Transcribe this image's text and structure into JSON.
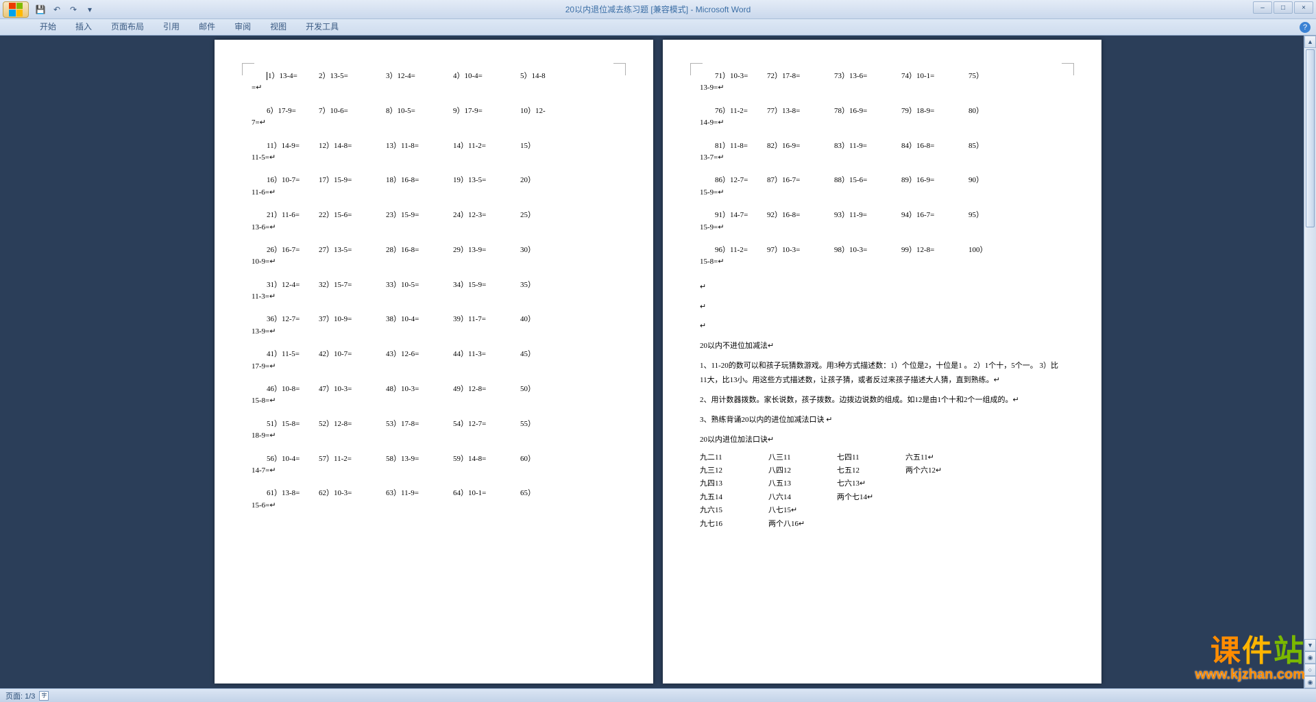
{
  "window": {
    "title_doc": "20以内退位减去练习题 [兼容模式]",
    "title_app": "Microsoft Word",
    "min": "–",
    "max": "□",
    "close": "×"
  },
  "ribbon": {
    "tabs": [
      "开始",
      "插入",
      "页面布局",
      "引用",
      "邮件",
      "审阅",
      "视图",
      "开发工具"
    ],
    "help": "?"
  },
  "page1": {
    "rows": [
      {
        "cells": [
          "1）13-4=",
          "2）13-5=",
          "3）12-4=",
          "4）10-4=",
          "5）14-8"
        ],
        "cont": "=↵"
      },
      {
        "cells": [
          "6）17-9=",
          "7）10-6=",
          "8）10-5=",
          "9）17-9=",
          "10）12-"
        ],
        "cont": "7=↵"
      },
      {
        "cells": [
          "11）14-9=",
          "12）14-8=",
          "13）11-8=",
          "14）11-2=",
          "15）"
        ],
        "cont": "11-5=↵"
      },
      {
        "cells": [
          "16）10-7=",
          "17）15-9=",
          "18）16-8=",
          "19）13-5=",
          "20）"
        ],
        "cont": "11-6=↵"
      },
      {
        "cells": [
          "21）11-6=",
          "22）15-6=",
          "23）15-9=",
          "24）12-3=",
          "25）"
        ],
        "cont": "13-6=↵"
      },
      {
        "cells": [
          "26）16-7=",
          "27）13-5=",
          "28）16-8=",
          "29）13-9=",
          "30）"
        ],
        "cont": "10-9=↵"
      },
      {
        "cells": [
          "31）12-4=",
          "32）15-7=",
          "33）10-5=",
          "34）15-9=",
          "35）"
        ],
        "cont": "11-3=↵"
      },
      {
        "cells": [
          "36）12-7=",
          "37）10-9=",
          "38）10-4=",
          "39）11-7=",
          "40）"
        ],
        "cont": "13-9=↵"
      },
      {
        "cells": [
          "41）11-5=",
          "42）10-7=",
          "43）12-6=",
          "44）11-3=",
          "45）"
        ],
        "cont": "17-9=↵"
      },
      {
        "cells": [
          "46）10-8=",
          "47）10-3=",
          "48）10-3=",
          "49）12-8=",
          "50）"
        ],
        "cont": "15-8=↵"
      },
      {
        "cells": [
          "51）15-8=",
          "52）12-8=",
          "53）17-8=",
          "54）12-7=",
          "55）"
        ],
        "cont": "18-9=↵"
      },
      {
        "cells": [
          "56）10-4=",
          "57）11-2=",
          "58）13-9=",
          "59）14-8=",
          "60）"
        ],
        "cont": "14-7=↵"
      },
      {
        "cells": [
          "61）13-8=",
          "62）10-3=",
          "63）11-9=",
          "64）10-1=",
          "65）"
        ],
        "cont": "15-6=↵"
      }
    ]
  },
  "page2": {
    "rows": [
      {
        "cells": [
          "71）10-3=",
          "72）17-8=",
          "73）13-6=",
          "74）10-1=",
          "75）"
        ],
        "cont": "13-9=↵"
      },
      {
        "cells": [
          "76）11-2=",
          "77）13-8=",
          "78）16-9=",
          "79）18-9=",
          "80）"
        ],
        "cont": "14-9=↵"
      },
      {
        "cells": [
          "81）11-8=",
          "82）16-9=",
          "83）11-9=",
          "84）16-8=",
          "85）"
        ],
        "cont": "13-7=↵"
      },
      {
        "cells": [
          "86）12-7=",
          "87）16-7=",
          "88）15-6=",
          "89）16-9=",
          "90）"
        ],
        "cont": "15-9=↵"
      },
      {
        "cells": [
          "91）14-7=",
          "92）16-8=",
          "93）11-9=",
          "94）16-7=",
          "95）"
        ],
        "cont": "15-9=↵"
      },
      {
        "cells": [
          "96）11-2=",
          "97）10-3=",
          "98）10-3=",
          "99）12-8=",
          "100）"
        ],
        "cont": "15-8=↵"
      }
    ],
    "heading1": "20以内不进位加减法↵",
    "para1": "1、11-20的数可以和孩子玩猜数游戏。用3种方式描述数：1）个位是2，十位是1 。 2）1个十，5个一。  3）比11大，比13小。用这些方式描述数，让孩子猜，或者反过来孩子描述大人猜，直到熟练。↵",
    "para2": "2、用计数器拨数。家长说数，孩子拨数。边拨边说数的组成。如12是由1个十和2个一组成的。↵",
    "para3": "3、熟练背诵20以内的进位加减法口诀    ↵",
    "heading2": "20以内进位加法口诀↵",
    "mnemonics": [
      [
        "九二11",
        "八三11",
        "七四11",
        "六五11↵"
      ],
      [
        "九三12",
        "八四12",
        "七五12",
        "两个六12↵"
      ],
      [
        "九四13",
        "八五13",
        "七六13↵"
      ],
      [
        "九五14",
        "八六14",
        "两个七14↵"
      ],
      [
        "九六15",
        "八七15↵"
      ],
      [
        "九七16",
        "两个八16↵"
      ]
    ]
  },
  "status": {
    "page": "页面: 1/3"
  },
  "watermark": {
    "line1a": "课",
    "line1b": "件",
    "line1c": "站",
    "line2": "www.kjzhan.com"
  }
}
